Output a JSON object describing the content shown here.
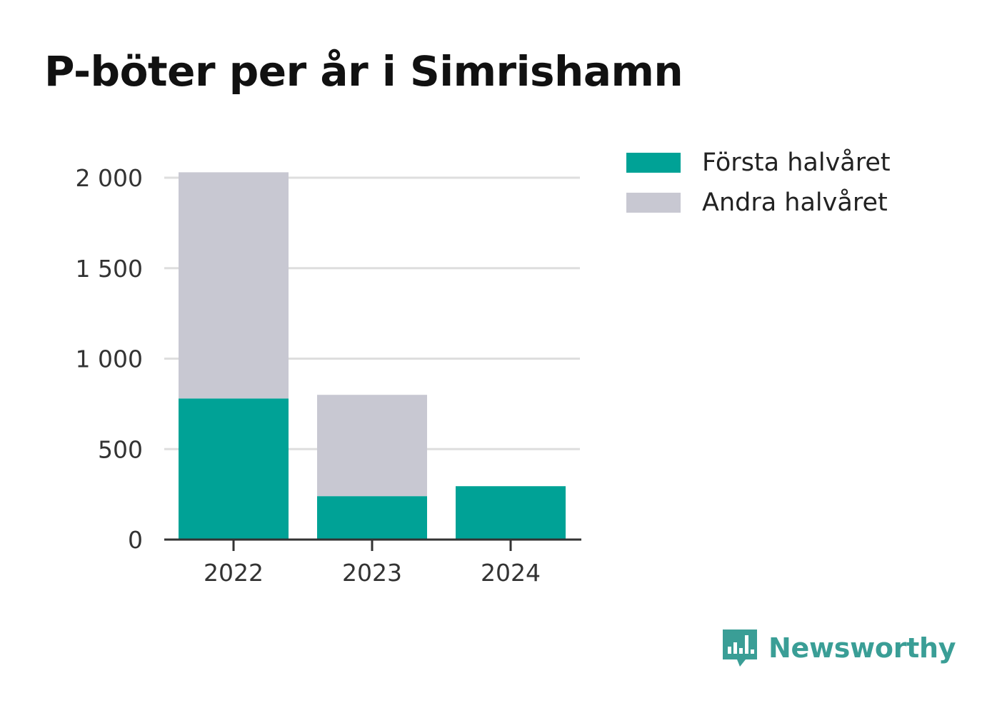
{
  "chart_data": {
    "type": "bar",
    "stacked": true,
    "title": "P-böter per år i Simrishamn",
    "xlabel": "",
    "ylabel": "",
    "categories": [
      "2022",
      "2023",
      "2024"
    ],
    "series": [
      {
        "name": "Första halvåret",
        "values": [
          780,
          240,
          295
        ],
        "color": "#00a296"
      },
      {
        "name": "Andra halvåret",
        "values": [
          1250,
          560,
          0
        ],
        "color": "#c8c8d2"
      }
    ],
    "ylim": [
      0,
      2000
    ],
    "yticks": [
      0,
      500,
      1000,
      1500,
      2000
    ],
    "ytick_labels": [
      "0",
      "500",
      "1 000",
      "1 500",
      "2 000"
    ],
    "grid": true,
    "legend_position": "top-right"
  },
  "brand": {
    "name": "Newsworthy",
    "color": "#3a9e96"
  }
}
